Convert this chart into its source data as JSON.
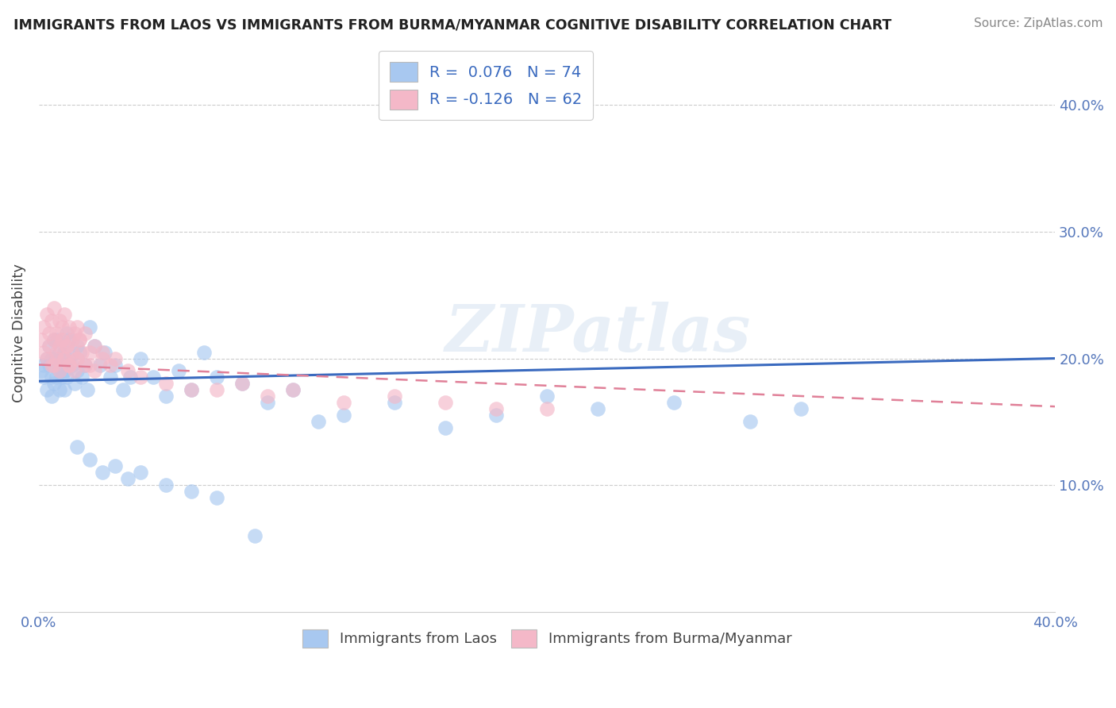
{
  "title": "IMMIGRANTS FROM LAOS VS IMMIGRANTS FROM BURMA/MYANMAR COGNITIVE DISABILITY CORRELATION CHART",
  "source": "Source: ZipAtlas.com",
  "ylabel": "Cognitive Disability",
  "xmin": 0.0,
  "xmax": 0.4,
  "ymin": 0.0,
  "ymax": 0.44,
  "color_blue": "#a8c8f0",
  "color_pink": "#f4b8c8",
  "line_color_blue": "#3a6abf",
  "line_color_pink": "#e08098",
  "watermark": "ZIPatlas",
  "laos_R": 0.076,
  "laos_N": 74,
  "burma_R": -0.126,
  "burma_N": 62,
  "laos_x": [
    0.001,
    0.002,
    0.002,
    0.003,
    0.003,
    0.004,
    0.004,
    0.005,
    0.005,
    0.005,
    0.006,
    0.006,
    0.006,
    0.007,
    0.007,
    0.007,
    0.008,
    0.008,
    0.008,
    0.009,
    0.009,
    0.01,
    0.01,
    0.01,
    0.011,
    0.011,
    0.012,
    0.012,
    0.013,
    0.014,
    0.015,
    0.015,
    0.016,
    0.017,
    0.018,
    0.019,
    0.02,
    0.022,
    0.024,
    0.026,
    0.028,
    0.03,
    0.033,
    0.036,
    0.04,
    0.045,
    0.05,
    0.055,
    0.06,
    0.065,
    0.07,
    0.08,
    0.09,
    0.1,
    0.11,
    0.12,
    0.14,
    0.16,
    0.18,
    0.2,
    0.22,
    0.25,
    0.28,
    0.3,
    0.015,
    0.02,
    0.025,
    0.03,
    0.035,
    0.04,
    0.05,
    0.06,
    0.07,
    0.085
  ],
  "laos_y": [
    0.19,
    0.195,
    0.185,
    0.2,
    0.175,
    0.195,
    0.21,
    0.185,
    0.2,
    0.17,
    0.215,
    0.195,
    0.18,
    0.2,
    0.185,
    0.215,
    0.19,
    0.175,
    0.205,
    0.195,
    0.185,
    0.205,
    0.19,
    0.175,
    0.22,
    0.185,
    0.2,
    0.215,
    0.195,
    0.18,
    0.21,
    0.19,
    0.205,
    0.185,
    0.195,
    0.175,
    0.225,
    0.21,
    0.195,
    0.205,
    0.185,
    0.195,
    0.175,
    0.185,
    0.2,
    0.185,
    0.17,
    0.19,
    0.175,
    0.205,
    0.185,
    0.18,
    0.165,
    0.175,
    0.15,
    0.155,
    0.165,
    0.145,
    0.155,
    0.17,
    0.16,
    0.165,
    0.15,
    0.16,
    0.13,
    0.12,
    0.11,
    0.115,
    0.105,
    0.11,
    0.1,
    0.095,
    0.09,
    0.06
  ],
  "burma_x": [
    0.001,
    0.002,
    0.002,
    0.003,
    0.003,
    0.004,
    0.004,
    0.005,
    0.005,
    0.006,
    0.006,
    0.007,
    0.007,
    0.008,
    0.008,
    0.009,
    0.009,
    0.01,
    0.01,
    0.011,
    0.012,
    0.012,
    0.013,
    0.014,
    0.015,
    0.015,
    0.016,
    0.017,
    0.018,
    0.02,
    0.022,
    0.025,
    0.028,
    0.03,
    0.035,
    0.04,
    0.05,
    0.06,
    0.07,
    0.08,
    0.09,
    0.1,
    0.12,
    0.14,
    0.16,
    0.18,
    0.2,
    0.006,
    0.007,
    0.008,
    0.009,
    0.01,
    0.011,
    0.012,
    0.013,
    0.014,
    0.015,
    0.016,
    0.018,
    0.02,
    0.022,
    0.025
  ],
  "burma_y": [
    0.215,
    0.225,
    0.205,
    0.235,
    0.2,
    0.22,
    0.21,
    0.23,
    0.195,
    0.24,
    0.215,
    0.22,
    0.2,
    0.23,
    0.21,
    0.215,
    0.225,
    0.2,
    0.235,
    0.21,
    0.225,
    0.195,
    0.215,
    0.22,
    0.2,
    0.225,
    0.215,
    0.205,
    0.22,
    0.195,
    0.21,
    0.205,
    0.195,
    0.2,
    0.19,
    0.185,
    0.18,
    0.175,
    0.175,
    0.18,
    0.17,
    0.175,
    0.165,
    0.17,
    0.165,
    0.16,
    0.16,
    0.195,
    0.205,
    0.19,
    0.215,
    0.2,
    0.21,
    0.195,
    0.205,
    0.19,
    0.2,
    0.215,
    0.195,
    0.205,
    0.19,
    0.2
  ],
  "laos_line_x0": 0.0,
  "laos_line_x1": 0.4,
  "laos_line_y0": 0.182,
  "laos_line_y1": 0.2,
  "burma_line_x0": 0.0,
  "burma_line_x1": 0.4,
  "burma_line_y0": 0.195,
  "burma_line_y1": 0.162
}
